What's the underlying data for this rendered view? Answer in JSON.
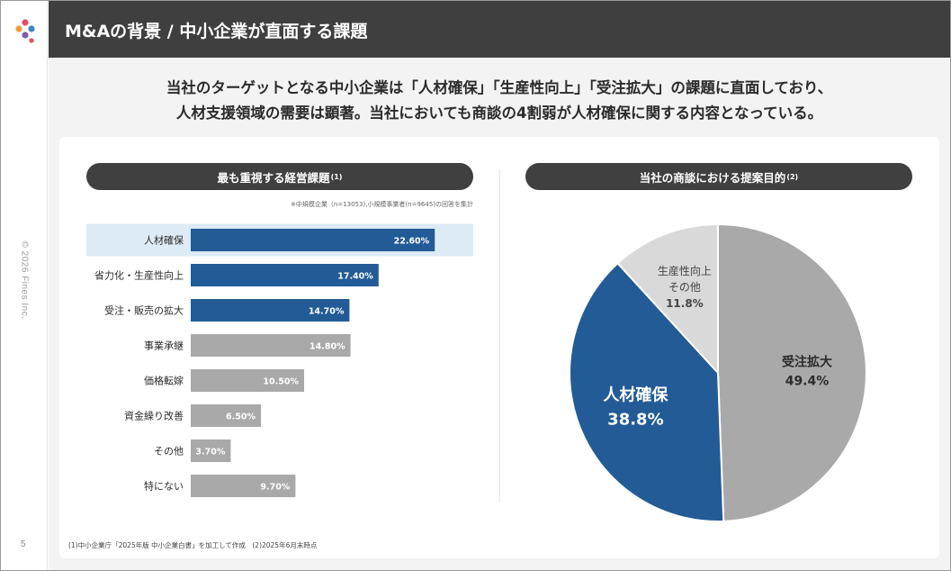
{
  "page": {
    "title": "M&Aの背景 / 中小企業が直面する課題",
    "lead_line1": "当社のターゲットとなる中小企業は「人材確保」「生産性向上」「受注拡大」の課題に直面しており、",
    "lead_line2": "人材支援領域の需要は顕著。当社においても商談の4割弱が人材確保に関する内容となっている。",
    "copyright": "© 2026 Fines Inc.",
    "page_number": "5",
    "footnote": "(1)中小企業庁「2025年版 中小企業白書」を加工して作成　(2)2025年6月末時点",
    "brand_colors": {
      "primary": "#235b96",
      "gray": "#a9a9a9",
      "light_gray": "#d9d9d9",
      "highlight": "#ddebf6"
    }
  },
  "left_panel": {
    "title": "最も重視する経営課題",
    "title_sup": "(1)",
    "note": "※中規模企業（n=13053),小規模事業者(n=9645)の回答を集計"
  },
  "right_panel": {
    "title": "当社の商談における提案目的",
    "title_sup": "(2)"
  },
  "chart_data": [
    {
      "type": "bar",
      "orientation": "horizontal",
      "title": "最も重視する経営課題(1)",
      "categories": [
        "人材確保",
        "省力化・生産性向上",
        "受注・販売の拡大",
        "事業承継",
        "価格転嫁",
        "資金繰り改善",
        "その他",
        "特にない"
      ],
      "values": [
        22.6,
        17.4,
        14.7,
        14.8,
        10.5,
        6.5,
        3.7,
        9.7
      ],
      "value_labels": [
        "22.60%",
        "17.40%",
        "14.70%",
        "14.80%",
        "10.50%",
        "6.50%",
        "3.70%",
        "9.70%"
      ],
      "colors": [
        "#235b96",
        "#235b96",
        "#235b96",
        "#a9a9a9",
        "#a9a9a9",
        "#a9a9a9",
        "#a9a9a9",
        "#a9a9a9"
      ],
      "highlighted_category": "人材確保",
      "xlim": [
        0,
        25
      ]
    },
    {
      "type": "pie",
      "title": "当社の商談における提案目的(2)",
      "labels": [
        "受注拡大",
        "人材確保",
        "生産性向上 その他"
      ],
      "label_lines": [
        [
          "受注拡大"
        ],
        [
          "人材確保"
        ],
        [
          "生産性向上",
          "その他"
        ]
      ],
      "values": [
        49.4,
        38.8,
        11.8
      ],
      "value_labels": [
        "49.4%",
        "38.8%",
        "11.8%"
      ],
      "colors": [
        "#a9a9a9",
        "#235b96",
        "#d9d9d9"
      ],
      "text_colors": [
        "#2b2b2b",
        "#ffffff",
        "#444444"
      ]
    }
  ]
}
